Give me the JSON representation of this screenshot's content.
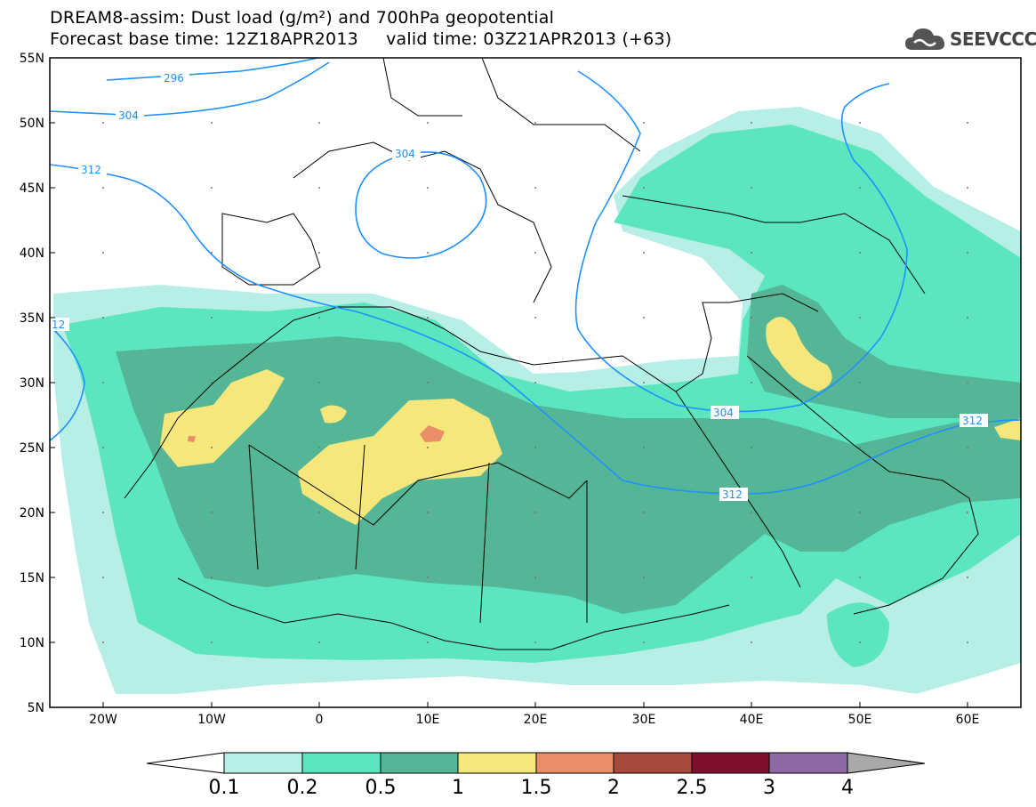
{
  "header": {
    "title_line_1": "DREAM8-assim: Dust load (g/m²) and 700hPa geopotential",
    "title_line_2": "Forecast base time: 12Z18APR2013     valid time: 03Z21APR2013 (+63)"
  },
  "logo": {
    "text": "SEEVCCC",
    "icon": "cloud-icon"
  },
  "map": {
    "lat_labels": [
      "55N",
      "50N",
      "45N",
      "40N",
      "35N",
      "30N",
      "25N",
      "20N",
      "15N",
      "10N",
      "5N"
    ],
    "lon_labels": [
      "20W",
      "10W",
      "0",
      "10E",
      "20E",
      "30E",
      "40E",
      "50E",
      "60E"
    ],
    "contour_labels": [
      "296",
      "304",
      "312",
      "304",
      "12",
      "304",
      "312",
      "312"
    ],
    "colors": {
      "land_border": "#000000",
      "contour_line": "#1e90ff",
      "contour_label": "#1e90ff"
    }
  },
  "colorbar": {
    "labels": [
      "0.1",
      "0.2",
      "0.5",
      "1",
      "1.5",
      "2",
      "2.5",
      "3",
      "4"
    ],
    "colors": [
      "#b7efe6",
      "#5be6c0",
      "#54b697",
      "#f5e77c",
      "#e98e68",
      "#a7483d",
      "#800f2f",
      "#8d6aa4",
      "#a9a9a9"
    ],
    "underflow_color": "#ffffff"
  }
}
